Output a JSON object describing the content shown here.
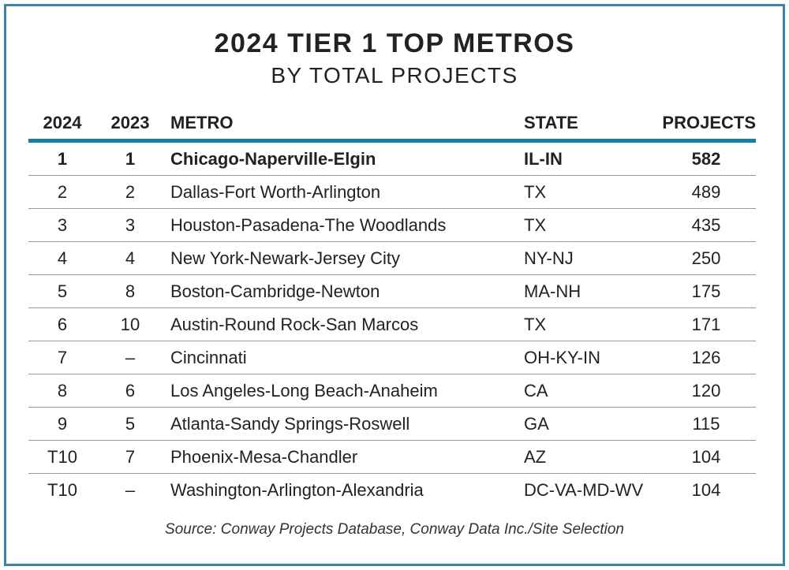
{
  "title": "2024 TIER 1 TOP METROS",
  "subtitle": "BY TOTAL PROJECTS",
  "source": "Source: Conway Projects Database, Conway Data Inc./Site Selection",
  "colors": {
    "accent": "#147fa3",
    "border": "#3a86a6"
  },
  "chart_data": {
    "type": "table",
    "title": "2024 TIER 1 TOP METROS",
    "subtitle": "BY TOTAL PROJECTS",
    "columns": [
      "2024",
      "2023",
      "METRO",
      "STATE",
      "PROJECTS"
    ],
    "rows": [
      [
        "1",
        "1",
        "Chicago-Naperville-Elgin",
        "IL-IN",
        "582"
      ],
      [
        "2",
        "2",
        "Dallas-Fort Worth-Arlington",
        "TX",
        "489"
      ],
      [
        "3",
        "3",
        "Houston-Pasadena-The Woodlands",
        "TX",
        "435"
      ],
      [
        "4",
        "4",
        "New York-Newark-Jersey City",
        "NY-NJ",
        "250"
      ],
      [
        "5",
        "8",
        "Boston-Cambridge-Newton",
        "MA-NH",
        "175"
      ],
      [
        "6",
        "10",
        "Austin-Round Rock-San Marcos",
        "TX",
        "171"
      ],
      [
        "7",
        "–",
        "Cincinnati",
        "OH-KY-IN",
        "126"
      ],
      [
        "8",
        "6",
        "Los Angeles-Long Beach-Anaheim",
        "CA",
        "120"
      ],
      [
        "9",
        "5",
        "Atlanta-Sandy Springs-Roswell",
        "GA",
        "115"
      ],
      [
        "T10",
        "7",
        "Phoenix-Mesa-Chandler",
        "AZ",
        "104"
      ],
      [
        "T10",
        "–",
        "Washington-Arlington-Alexandria",
        "DC-VA-MD-WV",
        "104"
      ]
    ]
  }
}
